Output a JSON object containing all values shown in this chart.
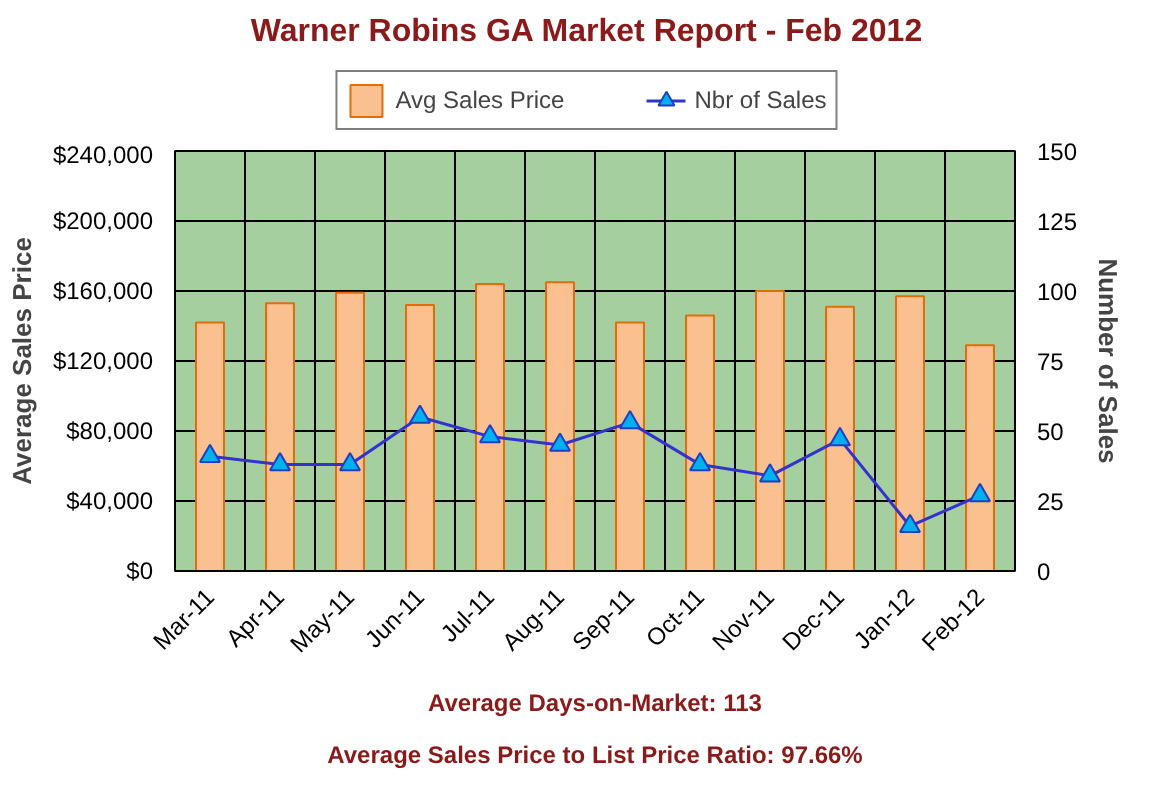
{
  "chart_data": {
    "type": "bar",
    "title": "Warner Robins GA Market Report - Feb 2012",
    "categories": [
      "Mar-11",
      "Apr-11",
      "May-11",
      "Jun-11",
      "Jul-11",
      "Aug-11",
      "Sep-11",
      "Oct-11",
      "Nov-11",
      "Dec-11",
      "Jan-12",
      "Feb-12"
    ],
    "series": [
      {
        "name": "Avg Sales Price",
        "color": "#fac090",
        "values": [
          142000,
          153000,
          159000,
          152000,
          164000,
          165000,
          142000,
          146000,
          160000,
          151000,
          157000,
          129000
        ]
      },
      {
        "name": "Nbr of Sales",
        "type": "line",
        "axis": "y2",
        "color": "#3333cc",
        "marker": "triangle",
        "values": [
          41,
          38,
          38,
          55,
          48,
          45,
          53,
          38,
          34,
          47,
          16,
          27
        ]
      }
    ],
    "ylabel": "Average Sales Price",
    "y2label": "Number of Sales",
    "ylim": [
      0,
      240000
    ],
    "yticks": [
      {
        "value": 0,
        "label": "$0"
      },
      {
        "value": 40000,
        "label": "$40,000"
      },
      {
        "value": 80000,
        "label": "$80,000"
      },
      {
        "value": 120000,
        "label": "$120,000"
      },
      {
        "value": 160000,
        "label": "$160,000"
      },
      {
        "value": 200000,
        "label": "$200,000"
      },
      {
        "value": 240000,
        "label": "$240,000"
      }
    ],
    "y2lim": [
      0,
      150
    ],
    "y2ticks": [
      0,
      25,
      50,
      75,
      100,
      125,
      150
    ],
    "grid": true,
    "legend": "top",
    "annotations": [
      "Average Days-on-Market: 113",
      "Average Sales Price to List Price Ratio: 97.66%"
    ]
  }
}
